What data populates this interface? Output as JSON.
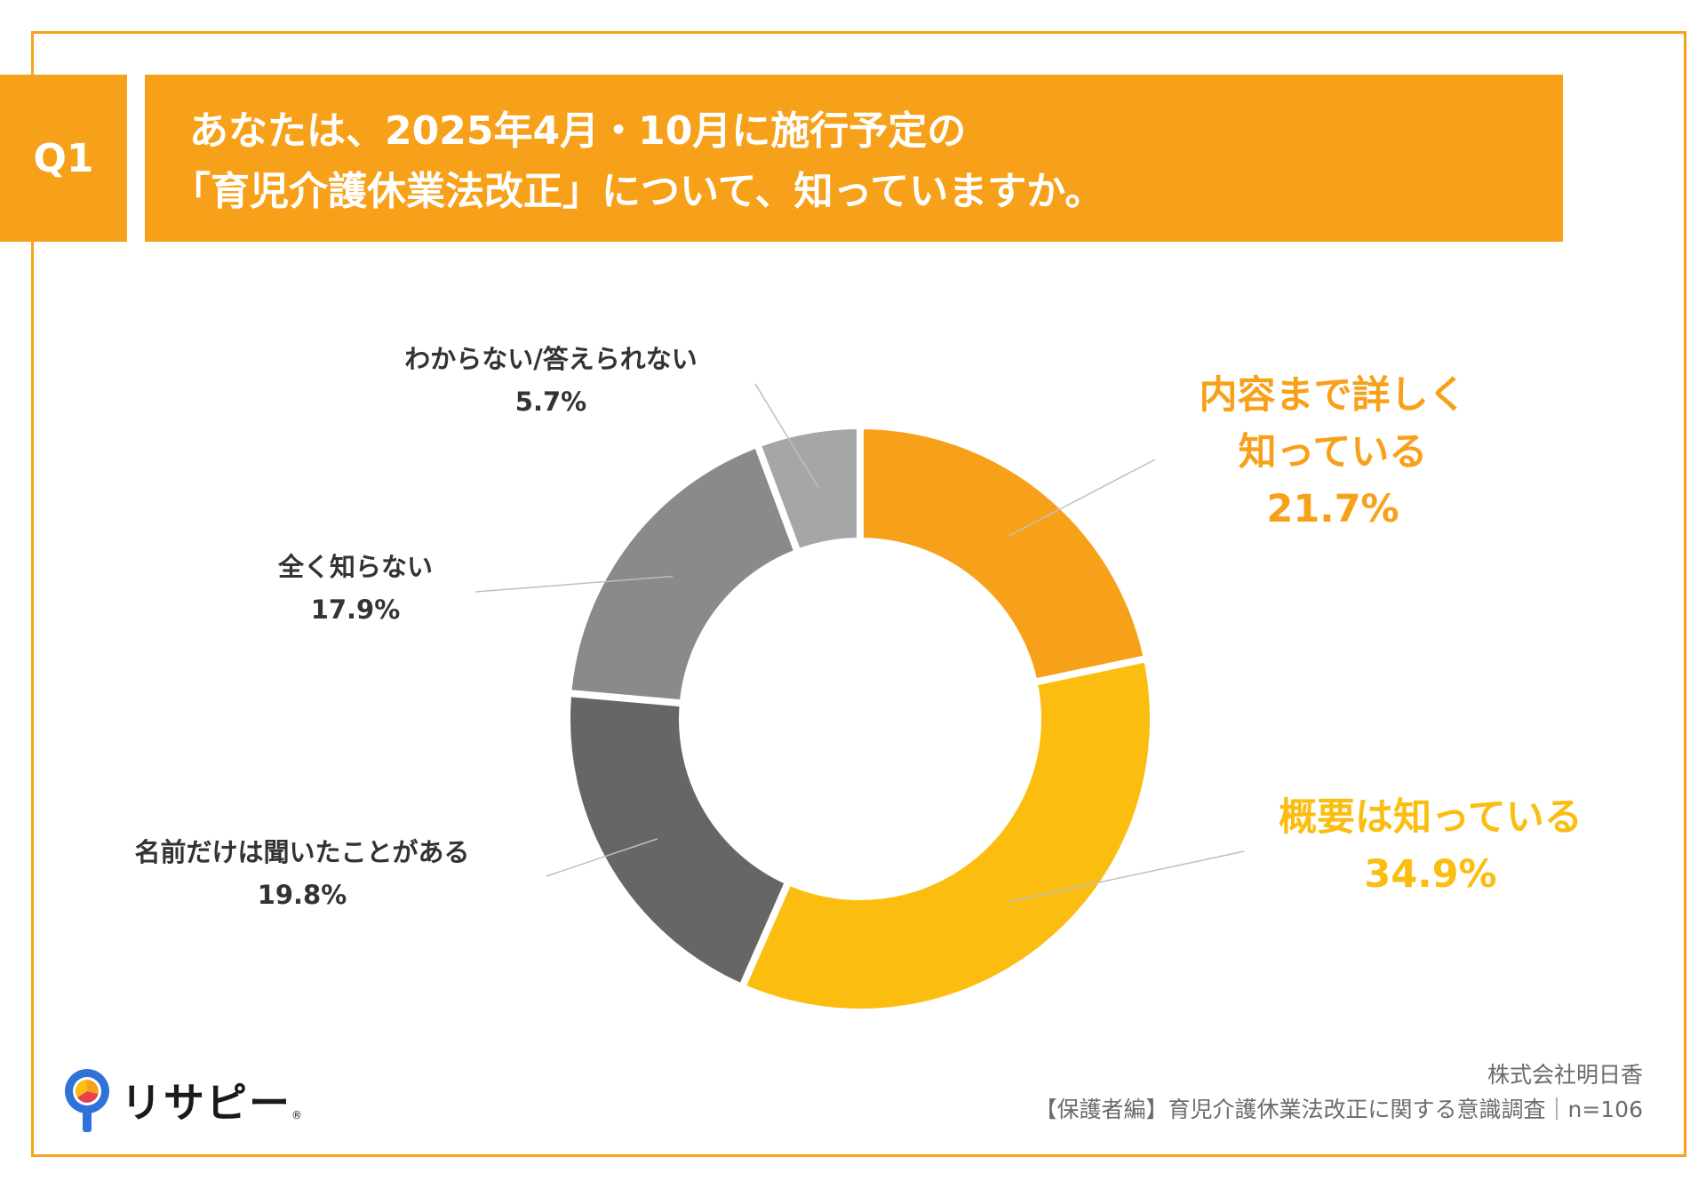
{
  "header": {
    "badge": "Q1",
    "title_line1": "あなたは、2025年4月・10月に施行予定の",
    "title_line2": "「育児介護休業法改正」について、知っていますか。"
  },
  "chart_data": {
    "type": "pie",
    "title": "あなたは、2025年4月・10月に施行予定の「育児介護休業法改正」について、知っていますか。",
    "categories": [
      "内容まで詳しく知っている",
      "概要は知っている",
      "名前だけは聞いたことがある",
      "全く知らない",
      "わからない/答えられない"
    ],
    "values": [
      21.7,
      34.9,
      19.8,
      17.9,
      5.7
    ],
    "colors": [
      "#f7a11a",
      "#fbbd0f",
      "#666666",
      "#8a8a8a",
      "#a6a6a6"
    ],
    "labels": [
      {
        "lines": [
          "内容まで詳しく",
          "知っている"
        ],
        "value": "21.7%",
        "color": "#f7a11a"
      },
      {
        "lines": [
          "概要は知っている"
        ],
        "value": "34.9%",
        "color": "#fbbd0f"
      },
      {
        "lines": [
          "名前だけは聞いたことがある"
        ],
        "value": "19.8%",
        "color": "#333333"
      },
      {
        "lines": [
          "全く知らない"
        ],
        "value": "17.9%",
        "color": "#333333"
      },
      {
        "lines": [
          "わからない/答えられない"
        ],
        "value": "5.7%",
        "color": "#333333"
      }
    ],
    "donut": true
  },
  "logo": {
    "text": "リサピー",
    "mark": "®"
  },
  "footer": {
    "company": "株式会社明日香",
    "survey": "【保護者編】育児介護休業法改正に関する意識調査｜n=106"
  }
}
